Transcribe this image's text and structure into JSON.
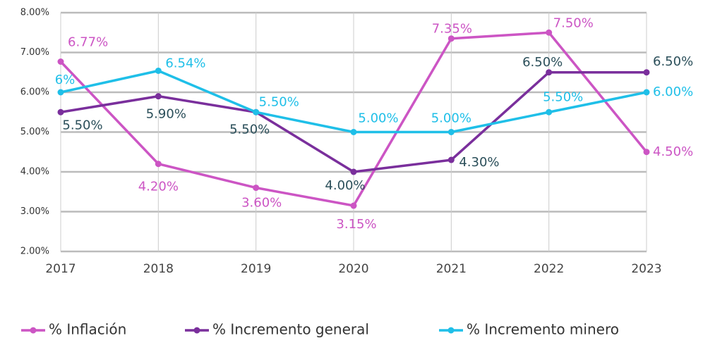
{
  "chart_data": {
    "type": "line",
    "categories": [
      "2017",
      "2018",
      "2019",
      "2020",
      "2021",
      "2022",
      "2023"
    ],
    "ylim": [
      2,
      8
    ],
    "yticks": [
      {
        "value": 2,
        "label": "2.00%"
      },
      {
        "value": 3,
        "label": "3.00%"
      },
      {
        "value": 4,
        "label": "4.00%"
      },
      {
        "value": 5,
        "label": "5.00%"
      },
      {
        "value": 6,
        "label": "6.00%"
      },
      {
        "value": 7,
        "label": "7.00%"
      },
      {
        "value": 8,
        "label": "8.00%"
      }
    ],
    "grid": true,
    "legend": "bottom",
    "series": [
      {
        "name": "% Inflación",
        "color": "#cc55c4",
        "label_color": "#cc55c4",
        "values": [
          6.77,
          4.2,
          3.6,
          3.15,
          7.35,
          7.5,
          4.5
        ],
        "value_labels": [
          "6.77%",
          "4.20%",
          "3.60%",
          "3.15%",
          "7.35%",
          "7.50%",
          "4.50%"
        ]
      },
      {
        "name": "% Incremento general",
        "color": "#7a2f9c",
        "label_color": "#2b4f5a",
        "values": [
          5.5,
          5.9,
          5.5,
          4.0,
          4.3,
          6.5,
          6.5
        ],
        "value_labels": [
          "5.50%",
          "5.90%",
          "5.50%",
          "4.00%",
          "4.30%",
          "6.50%",
          "6.50%"
        ]
      },
      {
        "name": "% Incremento minero",
        "color": "#1fbfe8",
        "label_color": "#1fbfe8",
        "values": [
          6,
          6.54,
          5.5,
          5.0,
          5.0,
          5.5,
          6.0
        ],
        "value_labels": [
          "6%",
          "6.54%",
          "5.50%",
          "5.00%",
          "5.00%",
          "5.50%",
          "6.00%"
        ]
      }
    ]
  }
}
